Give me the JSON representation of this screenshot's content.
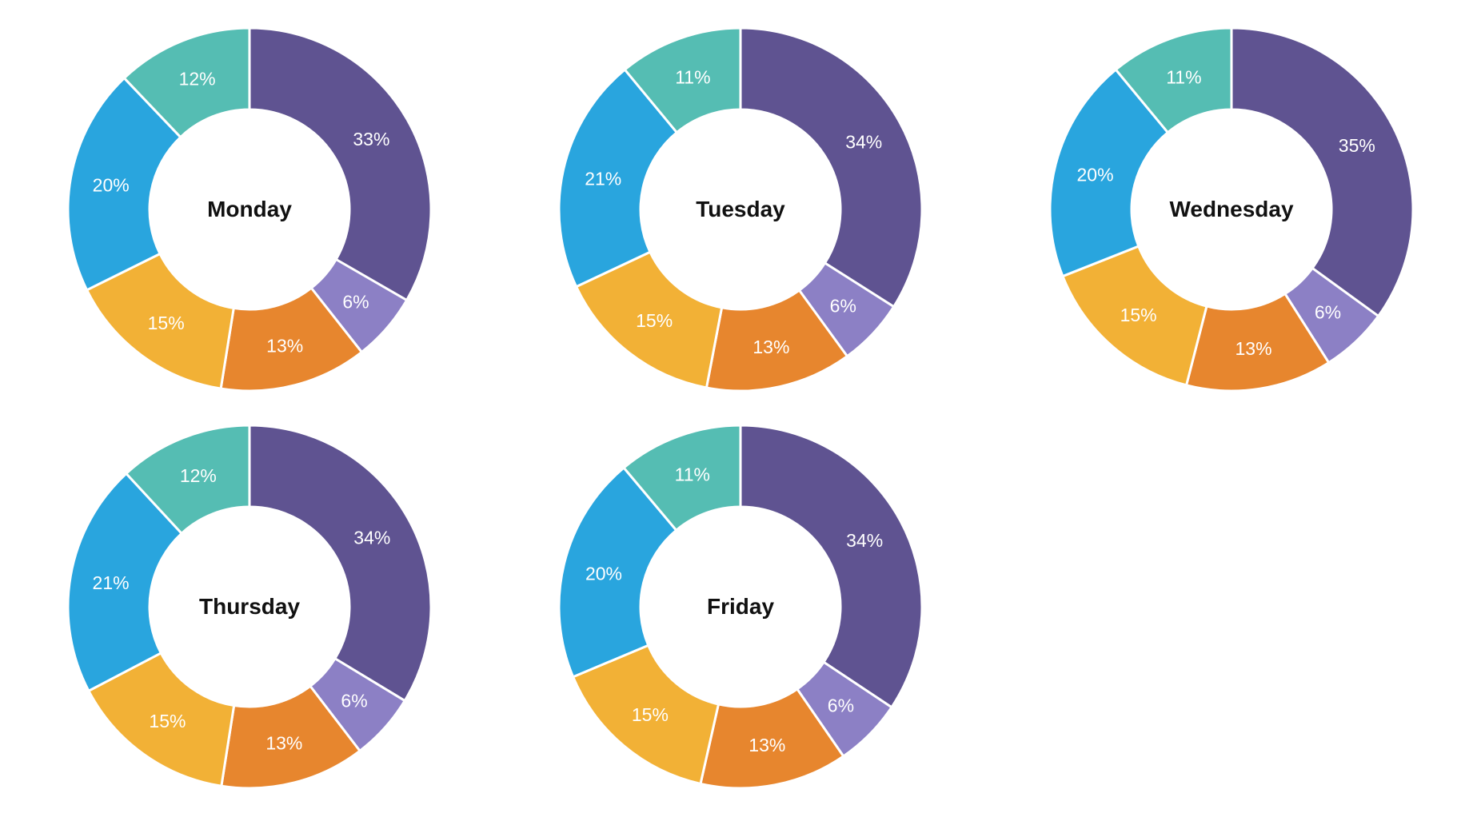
{
  "page": {
    "background_color": "#ffffff",
    "title_color": "#111111",
    "slice_label_color": "#ffffff",
    "slice_separator_color": "#ffffff"
  },
  "palette": [
    "#5F5391",
    "#8C80C5",
    "#E7862E",
    "#F2B136",
    "#29A5DE",
    "#55BDB3"
  ],
  "chart_data": [
    {
      "type": "pie",
      "donut": true,
      "title": "Monday",
      "values": [
        33,
        6,
        13,
        15,
        20,
        12
      ],
      "labels": [
        "33%",
        "6%",
        "13%",
        "15%",
        "20%",
        "12%"
      ],
      "start_angle": "top",
      "direction": "clockwise",
      "legend": "none"
    },
    {
      "type": "pie",
      "donut": true,
      "title": "Tuesday",
      "values": [
        34,
        6,
        13,
        15,
        21,
        11
      ],
      "labels": [
        "34%",
        "6%",
        "13%",
        "15%",
        "21%",
        "11%"
      ],
      "start_angle": "top",
      "direction": "clockwise",
      "legend": "none"
    },
    {
      "type": "pie",
      "donut": true,
      "title": "Wednesday",
      "values": [
        35,
        6,
        13,
        15,
        20,
        11
      ],
      "labels": [
        "35%",
        "6%",
        "13%",
        "15%",
        "20%",
        "11%"
      ],
      "start_angle": "top",
      "direction": "clockwise",
      "legend": "none"
    },
    {
      "type": "pie",
      "donut": true,
      "title": "Thursday",
      "values": [
        34,
        6,
        13,
        15,
        21,
        12
      ],
      "labels": [
        "34%",
        "6%",
        "13%",
        "15%",
        "21%",
        "12%"
      ],
      "start_angle": "top",
      "direction": "clockwise",
      "legend": "none"
    },
    {
      "type": "pie",
      "donut": true,
      "title": "Friday",
      "values": [
        34,
        6,
        13,
        15,
        20,
        11
      ],
      "labels": [
        "34%",
        "6%",
        "13%",
        "15%",
        "20%",
        "11%"
      ],
      "start_angle": "top",
      "direction": "clockwise",
      "legend": "none"
    }
  ]
}
